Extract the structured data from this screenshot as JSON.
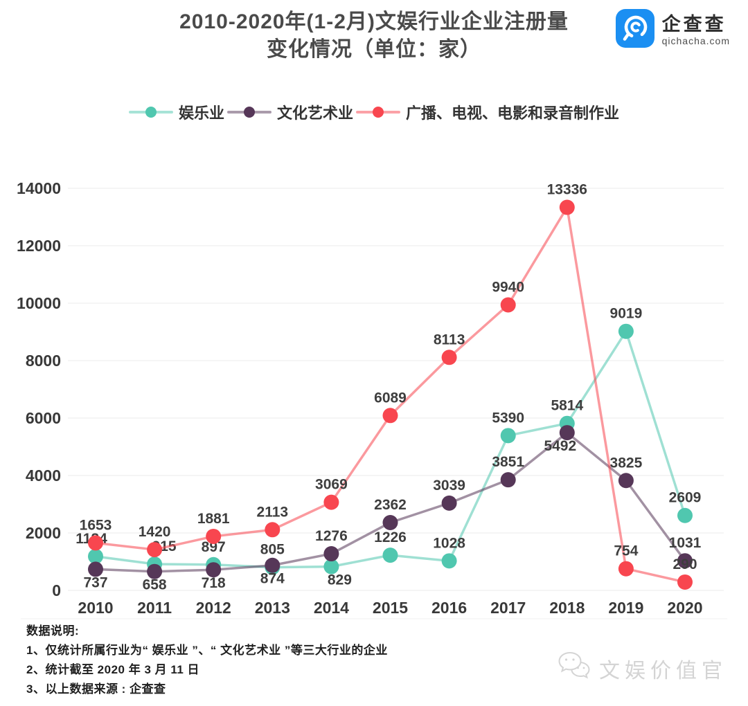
{
  "header": {
    "title_line1": "2010-2020年(1-2月)文娱行业企业注册量",
    "title_line2": "变化情况（单位：家）"
  },
  "logo": {
    "name": "企查查",
    "domain": "qichacha.com",
    "brand_color": "#1B8FF2"
  },
  "chart_data": {
    "type": "line",
    "title": "2010-2020年(1-2月)文娱行业企业注册量变化情况（单位：家）",
    "x": [
      "2010",
      "2011",
      "2012",
      "2013",
      "2014",
      "2015",
      "2016",
      "2017",
      "2018",
      "2019",
      "2020"
    ],
    "ylim": [
      0,
      14000
    ],
    "ytick_step": 2000,
    "grid": true,
    "legend_position": "top",
    "series": [
      {
        "name": "娱乐业",
        "color": "#50C7AF",
        "values": [
          1184,
          915,
          897,
          805,
          829,
          1226,
          1028,
          5390,
          5814,
          9019,
          2609
        ],
        "label_pos": [
          "above:-6",
          "above:14",
          "above",
          "above",
          "below:12",
          "above",
          "above",
          "above",
          "above",
          "above",
          "above"
        ]
      },
      {
        "name": "文化艺术业",
        "color": "#563758",
        "values": [
          737,
          658,
          718,
          874,
          1276,
          2362,
          3039,
          3851,
          5492,
          3825,
          1031
        ],
        "label_pos": [
          "below",
          "below",
          "below",
          "below",
          "above",
          "above",
          "above",
          "above",
          "below:-10",
          "above",
          "above"
        ]
      },
      {
        "name": "广播、电视、电影和录音制作业",
        "color": "#F8464F",
        "values": [
          1653,
          1420,
          1881,
          2113,
          3069,
          6089,
          8113,
          9940,
          13336,
          754,
          290
        ],
        "label_pos": [
          "above",
          "above",
          "above",
          "above",
          "above",
          "above",
          "above",
          "above",
          "above",
          "above",
          "above"
        ]
      }
    ]
  },
  "footer": {
    "heading": "数据说明:",
    "notes": [
      "1、仅统计所属行业为“ 娱乐业 ”、“ 文化艺术业 ”等三大行业的企业",
      "2、统计截至 2020 年 3 月 11 日",
      "3、以上数据来源 : 企查查"
    ]
  },
  "watermark": {
    "text": "文娱价值官"
  }
}
